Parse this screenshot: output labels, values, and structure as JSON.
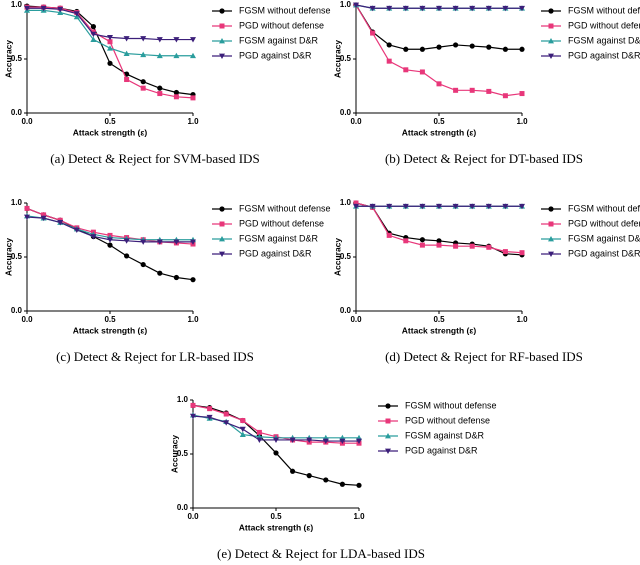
{
  "chart_data": [
    {
      "type": "line",
      "caption": "(a)  Detect & Reject for SVM-based IDS",
      "xlabel": "Attack strength (ε)",
      "ylabel": "Accuracy",
      "x": [
        0,
        0.1,
        0.2,
        0.3,
        0.4,
        0.5,
        0.6,
        0.7,
        0.8,
        0.9,
        1.0
      ],
      "xlim": [
        0,
        1
      ],
      "xticks": [
        {
          "value": 0,
          "label": "0.0"
        },
        {
          "value": 0.5,
          "label": "0.5"
        },
        {
          "value": 1,
          "label": "1.0"
        }
      ],
      "ylim": [
        0,
        1
      ],
      "yticks": [
        {
          "value": 0,
          "label": "0.0"
        },
        {
          "value": 0.5,
          "label": "0.5"
        },
        {
          "value": 1,
          "label": "1.0"
        }
      ],
      "series": [
        {
          "name": "FGSM without defense",
          "color": "#000000",
          "marker": "circle",
          "values": [
            0.99,
            0.98,
            0.97,
            0.94,
            0.8,
            0.46,
            0.36,
            0.29,
            0.23,
            0.19,
            0.17
          ]
        },
        {
          "name": "PGD without defense",
          "color": "#e8377a",
          "marker": "square",
          "values": [
            0.98,
            0.98,
            0.97,
            0.93,
            0.75,
            0.66,
            0.31,
            0.23,
            0.18,
            0.15,
            0.14
          ]
        },
        {
          "name": "FGSM against D&R",
          "color": "#2a9d9d",
          "marker": "triangle",
          "values": [
            0.95,
            0.95,
            0.93,
            0.89,
            0.68,
            0.6,
            0.55,
            0.54,
            0.53,
            0.53,
            0.53
          ]
        },
        {
          "name": "PGD against D&R",
          "color": "#3c1f7a",
          "marker": "triangle-down",
          "values": [
            0.97,
            0.97,
            0.96,
            0.92,
            0.73,
            0.7,
            0.69,
            0.69,
            0.68,
            0.68,
            0.68
          ]
        }
      ]
    },
    {
      "type": "line",
      "caption": "(b)  Detect & Reject for DT-based IDS",
      "xlabel": "Attack strength (ε)",
      "ylabel": "Accuracy",
      "x": [
        0,
        0.1,
        0.2,
        0.3,
        0.4,
        0.5,
        0.6,
        0.7,
        0.8,
        0.9,
        1.0
      ],
      "xlim": [
        0,
        1
      ],
      "xticks": [
        {
          "value": 0,
          "label": "0.0"
        },
        {
          "value": 0.5,
          "label": "0.5"
        },
        {
          "value": 1,
          "label": "1.0"
        }
      ],
      "ylim": [
        0,
        1
      ],
      "yticks": [
        {
          "value": 0,
          "label": "0.0"
        },
        {
          "value": 0.5,
          "label": "0.5"
        },
        {
          "value": 1,
          "label": "1.0"
        }
      ],
      "series": [
        {
          "name": "FGSM without defense",
          "color": "#000000",
          "marker": "circle",
          "values": [
            1.0,
            0.75,
            0.63,
            0.59,
            0.59,
            0.61,
            0.63,
            0.62,
            0.61,
            0.59,
            0.59
          ]
        },
        {
          "name": "PGD without defense",
          "color": "#e8377a",
          "marker": "square",
          "values": [
            1.0,
            0.74,
            0.48,
            0.4,
            0.38,
            0.27,
            0.21,
            0.21,
            0.2,
            0.16,
            0.18
          ]
        },
        {
          "name": "FGSM against D&R",
          "color": "#2a9d9d",
          "marker": "triangle",
          "values": [
            1.0,
            0.97,
            0.97,
            0.97,
            0.97,
            0.97,
            0.97,
            0.97,
            0.97,
            0.97,
            0.97
          ]
        },
        {
          "name": "PGD against D&R",
          "color": "#3c1f7a",
          "marker": "triangle-down",
          "values": [
            1.0,
            0.97,
            0.97,
            0.97,
            0.97,
            0.97,
            0.97,
            0.97,
            0.97,
            0.97,
            0.97
          ]
        }
      ]
    },
    {
      "type": "line",
      "caption": "(c)  Detect & Reject for LR-based IDS",
      "xlabel": "Attack strength (ε)",
      "ylabel": "Accuracy",
      "x": [
        0,
        0.1,
        0.2,
        0.3,
        0.4,
        0.5,
        0.6,
        0.7,
        0.8,
        0.9,
        1.0
      ],
      "xlim": [
        0,
        1
      ],
      "xticks": [
        {
          "value": 0,
          "label": "0.0"
        },
        {
          "value": 0.5,
          "label": "0.5"
        },
        {
          "value": 1,
          "label": "1.0"
        }
      ],
      "ylim": [
        0,
        1
      ],
      "yticks": [
        {
          "value": 0,
          "label": "0.0"
        },
        {
          "value": 0.5,
          "label": "0.5"
        },
        {
          "value": 1,
          "label": "1.0"
        }
      ],
      "series": [
        {
          "name": "FGSM without defense",
          "color": "#000000",
          "marker": "circle",
          "values": [
            0.95,
            0.89,
            0.84,
            0.76,
            0.69,
            0.61,
            0.51,
            0.43,
            0.35,
            0.31,
            0.29
          ]
        },
        {
          "name": "PGD without defense",
          "color": "#e8377a",
          "marker": "square",
          "values": [
            0.95,
            0.89,
            0.84,
            0.77,
            0.73,
            0.7,
            0.68,
            0.66,
            0.64,
            0.63,
            0.62
          ]
        },
        {
          "name": "FGSM against D&R",
          "color": "#2a9d9d",
          "marker": "triangle",
          "values": [
            0.88,
            0.86,
            0.82,
            0.76,
            0.71,
            0.68,
            0.67,
            0.66,
            0.66,
            0.66,
            0.66
          ]
        },
        {
          "name": "PGD against D&R",
          "color": "#3c1f7a",
          "marker": "triangle-down",
          "values": [
            0.87,
            0.86,
            0.82,
            0.75,
            0.69,
            0.66,
            0.65,
            0.64,
            0.64,
            0.64,
            0.64
          ]
        }
      ]
    },
    {
      "type": "line",
      "caption": "(d)  Detect & Reject for RF-based IDS",
      "xlabel": "Attack strength (ε)",
      "ylabel": "Accuracy",
      "x": [
        0,
        0.1,
        0.2,
        0.3,
        0.4,
        0.5,
        0.6,
        0.7,
        0.8,
        0.9,
        1.0
      ],
      "xlim": [
        0,
        1
      ],
      "xticks": [
        {
          "value": 0,
          "label": "0.0"
        },
        {
          "value": 0.5,
          "label": "0.5"
        },
        {
          "value": 1,
          "label": "1.0"
        }
      ],
      "ylim": [
        0,
        1
      ],
      "yticks": [
        {
          "value": 0,
          "label": "0.0"
        },
        {
          "value": 0.5,
          "label": "0.5"
        },
        {
          "value": 1,
          "label": "1.0"
        }
      ],
      "series": [
        {
          "name": "FGSM without defense",
          "color": "#000000",
          "marker": "circle",
          "values": [
            1.0,
            0.96,
            0.72,
            0.68,
            0.66,
            0.65,
            0.63,
            0.62,
            0.6,
            0.53,
            0.52
          ]
        },
        {
          "name": "PGD without defense",
          "color": "#e8377a",
          "marker": "square",
          "values": [
            1.0,
            0.96,
            0.7,
            0.65,
            0.61,
            0.61,
            0.6,
            0.6,
            0.59,
            0.55,
            0.54
          ]
        },
        {
          "name": "FGSM against D&R",
          "color": "#2a9d9d",
          "marker": "triangle",
          "values": [
            0.97,
            0.97,
            0.97,
            0.97,
            0.97,
            0.97,
            0.97,
            0.97,
            0.97,
            0.97,
            0.97
          ]
        },
        {
          "name": "PGD against D&R",
          "color": "#3c1f7a",
          "marker": "triangle-down",
          "values": [
            0.97,
            0.97,
            0.97,
            0.97,
            0.97,
            0.97,
            0.97,
            0.97,
            0.97,
            0.97,
            0.97
          ]
        }
      ]
    },
    {
      "type": "line",
      "caption": "(e)  Detect & Reject for LDA-based IDS",
      "xlabel": "Attack strength (ε)",
      "ylabel": "Accuracy",
      "x": [
        0,
        0.1,
        0.2,
        0.3,
        0.4,
        0.5,
        0.6,
        0.7,
        0.8,
        0.9,
        1.0
      ],
      "xlim": [
        0,
        1
      ],
      "xticks": [
        {
          "value": 0,
          "label": "0.0"
        },
        {
          "value": 0.5,
          "label": "0.5"
        },
        {
          "value": 1,
          "label": "1.0"
        }
      ],
      "ylim": [
        0,
        1
      ],
      "yticks": [
        {
          "value": 0,
          "label": "0.0"
        },
        {
          "value": 0.5,
          "label": "0.5"
        },
        {
          "value": 1,
          "label": "1.0"
        }
      ],
      "series": [
        {
          "name": "FGSM without defense",
          "color": "#000000",
          "marker": "circle",
          "values": [
            0.95,
            0.93,
            0.88,
            0.81,
            0.67,
            0.51,
            0.34,
            0.3,
            0.26,
            0.22,
            0.21
          ]
        },
        {
          "name": "PGD without defense",
          "color": "#e8377a",
          "marker": "square",
          "values": [
            0.95,
            0.92,
            0.87,
            0.81,
            0.7,
            0.66,
            0.63,
            0.61,
            0.61,
            0.6,
            0.6
          ]
        },
        {
          "name": "FGSM against D&R",
          "color": "#2a9d9d",
          "marker": "triangle",
          "values": [
            0.86,
            0.83,
            0.8,
            0.68,
            0.66,
            0.65,
            0.65,
            0.65,
            0.65,
            0.65,
            0.65
          ]
        },
        {
          "name": "PGD against D&R",
          "color": "#3c1f7a",
          "marker": "triangle-down",
          "values": [
            0.85,
            0.84,
            0.79,
            0.73,
            0.63,
            0.63,
            0.63,
            0.63,
            0.62,
            0.62,
            0.62
          ]
        }
      ]
    }
  ]
}
